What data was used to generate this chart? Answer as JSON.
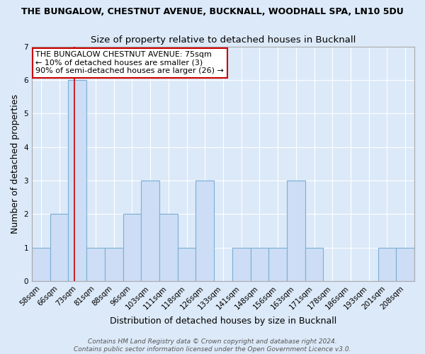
{
  "title": "THE BUNGALOW, CHESTNUT AVENUE, BUCKNALL, WOODHALL SPA, LN10 5DU",
  "subtitle": "Size of property relative to detached houses in Bucknall",
  "xlabel": "Distribution of detached houses by size in Bucknall",
  "ylabel": "Number of detached properties",
  "categories": [
    "58sqm",
    "66sqm",
    "73sqm",
    "81sqm",
    "88sqm",
    "96sqm",
    "103sqm",
    "111sqm",
    "118sqm",
    "126sqm",
    "133sqm",
    "141sqm",
    "148sqm",
    "156sqm",
    "163sqm",
    "171sqm",
    "178sqm",
    "186sqm",
    "193sqm",
    "201sqm",
    "208sqm"
  ],
  "values": [
    1,
    2,
    6,
    1,
    1,
    2,
    3,
    2,
    1,
    3,
    0,
    1,
    1,
    1,
    3,
    1,
    0,
    0,
    0,
    1,
    1
  ],
  "bar_color": "#ccddf5",
  "bar_edge_color": "#7bafd4",
  "red_line_bar_index": 2,
  "red_line_color": "#cc0000",
  "ylim": [
    0,
    7
  ],
  "yticks": [
    0,
    1,
    2,
    3,
    4,
    5,
    6,
    7
  ],
  "annotation_title": "THE BUNGALOW CHESTNUT AVENUE: 75sqm",
  "annotation_line1": "← 10% of detached houses are smaller (3)",
  "annotation_line2": "90% of semi-detached houses are larger (26) →",
  "annotation_box_facecolor": "#ffffff",
  "annotation_box_edgecolor": "#cc0000",
  "footer1": "Contains HM Land Registry data © Crown copyright and database right 2024.",
  "footer2": "Contains public sector information licensed under the Open Government Licence v3.0.",
  "fig_facecolor": "#dce9f8",
  "plot_facecolor": "#dce9f8",
  "grid_color": "#ffffff",
  "title_fontsize": 9,
  "subtitle_fontsize": 9.5,
  "axis_label_fontsize": 9,
  "tick_fontsize": 7.5,
  "annotation_fontsize": 8,
  "footer_fontsize": 6.5
}
